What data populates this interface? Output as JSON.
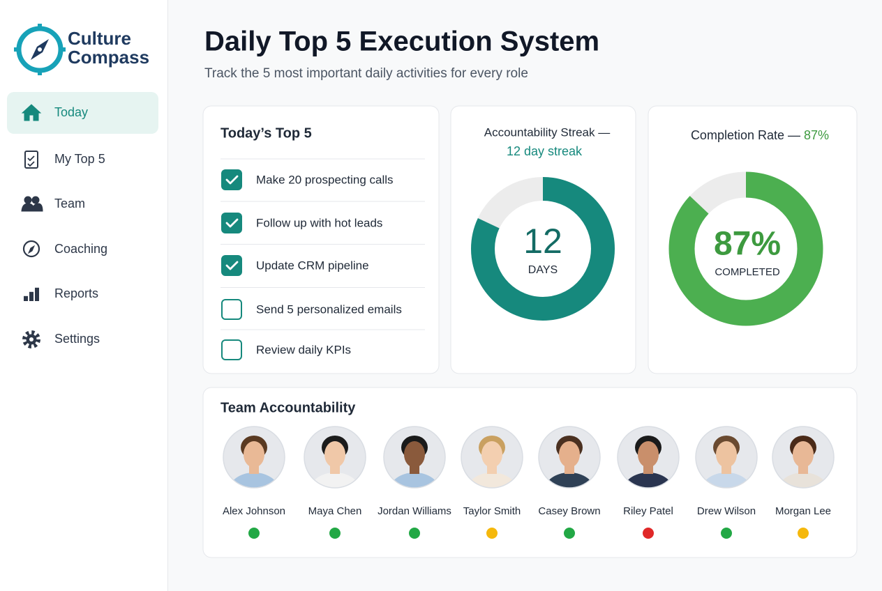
{
  "sidebar": {
    "brand": [
      "Culture",
      "Compass"
    ],
    "nav": [
      {
        "label": "Today",
        "active": true
      },
      {
        "label": "My Top 5",
        "active": false
      },
      {
        "label": "Team",
        "active": false
      },
      {
        "label": "Coaching",
        "active": false
      },
      {
        "label": "Reports",
        "active": false
      },
      {
        "label": "Settings",
        "active": false
      }
    ]
  },
  "header": {
    "title": "Daily Top 5 Execution System",
    "subtitle": "Track the 5 most important daily activities for every role"
  },
  "top5": {
    "title": "Today’s Top 5",
    "tasks": [
      {
        "label": "Make 20 prospecting calls",
        "done": true
      },
      {
        "label": "Follow up with hot leads",
        "done": true
      },
      {
        "label": "Update CRM pipeline",
        "done": true
      },
      {
        "label": "Send 5 personalized emails",
        "done": false
      },
      {
        "label": "Review daily KPIs",
        "done": false
      }
    ]
  },
  "streak": {
    "title": "Accountability Streak —",
    "subtitle": "12 day streak",
    "value": "12",
    "unit": "DAYS",
    "color": "#16897d"
  },
  "completion": {
    "title": "Completion Rate —",
    "title_value": "87%",
    "value": 87,
    "value_label": "87%",
    "unit": "COMPLETED",
    "color": "#4caf50"
  },
  "team": {
    "title": "Team Accountability",
    "members": [
      {
        "name": "Alex Johnson",
        "status_color": "#22a845"
      },
      {
        "name": "Maya Chen",
        "status_color": "#22a845"
      },
      {
        "name": "Jordan Williams",
        "status_color": "#22a845"
      },
      {
        "name": "Taylor Smith",
        "status_color": "#f5b80c"
      },
      {
        "name": "Casey Brown",
        "status_color": "#22a845"
      },
      {
        "name": "Riley Patel",
        "status_color": "#e02828"
      },
      {
        "name": "Drew Wilson",
        "status_color": "#22a845"
      },
      {
        "name": "Morgan Lee",
        "status_color": "#f5b80c"
      }
    ]
  }
}
